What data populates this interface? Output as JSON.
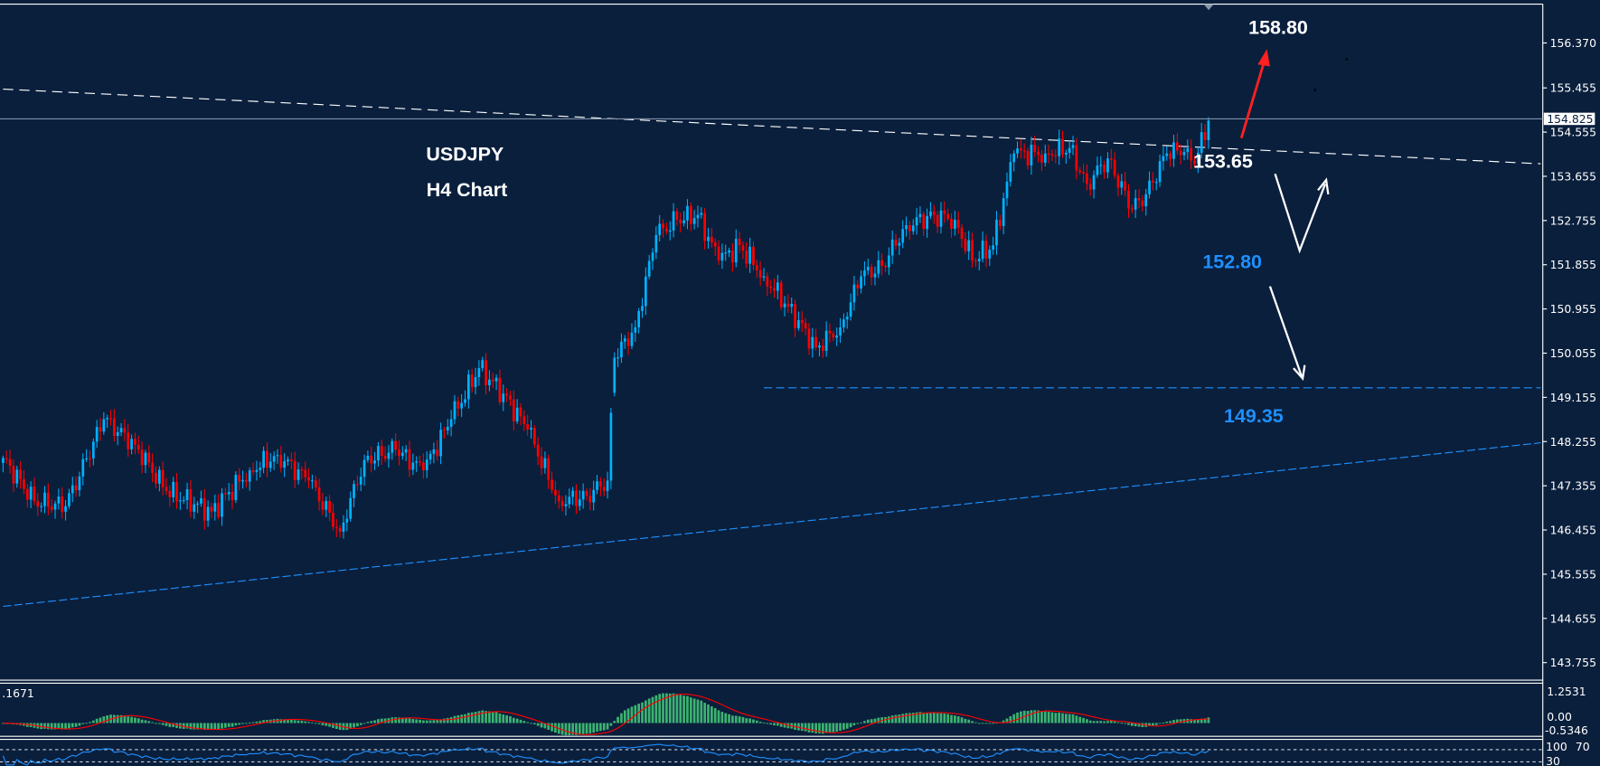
{
  "colors": {
    "background": "#0a1f3c",
    "bull": "#00b2ff",
    "bear": "#ff0000",
    "frame": "#ffffff",
    "macd_hist": "#3cb371",
    "macd_signal": "#ff0000",
    "rsi_line": "#1e90ff",
    "trend_blue": "#1e90ff",
    "resistance": "#ffffff",
    "price_line": "#8090a8"
  },
  "chart_data": {
    "type": "candlestick",
    "symbol_label": "USDJPY",
    "timeframe_label": "H4 Chart",
    "ylim": [
      143.3,
      156.9
    ],
    "y_ticks": [
      "156.370",
      "155.455",
      "154.555",
      "153.655",
      "152.755",
      "151.855",
      "150.955",
      "150.055",
      "149.155",
      "148.255",
      "147.355",
      "146.455",
      "145.555",
      "144.655",
      "143.755"
    ],
    "current_price": "154.825",
    "close_path": [
      [
        0,
        147.92
      ],
      [
        9,
        147.04
      ],
      [
        18,
        146.94
      ],
      [
        29,
        148.71
      ],
      [
        38,
        148.19
      ],
      [
        47,
        147.25
      ],
      [
        60,
        146.83
      ],
      [
        71,
        147.67
      ],
      [
        79,
        147.98
      ],
      [
        88,
        147.46
      ],
      [
        97,
        146.42
      ],
      [
        104,
        147.88
      ],
      [
        113,
        148.09
      ],
      [
        121,
        147.67
      ],
      [
        129,
        148.71
      ],
      [
        137,
        149.75
      ],
      [
        144,
        149.23
      ],
      [
        151,
        148.5
      ],
      [
        160,
        147.04
      ],
      [
        168,
        147.15
      ],
      [
        174,
        147.46
      ],
      [
        176,
        149.96
      ],
      [
        182,
        150.58
      ],
      [
        188,
        152.46
      ],
      [
        194,
        152.77
      ],
      [
        200,
        152.87
      ],
      [
        206,
        151.94
      ],
      [
        212,
        152.25
      ],
      [
        219,
        151.62
      ],
      [
        226,
        151.0
      ],
      [
        234,
        150.17
      ],
      [
        241,
        150.58
      ],
      [
        247,
        151.62
      ],
      [
        253,
        151.83
      ],
      [
        260,
        152.66
      ],
      [
        268,
        152.87
      ],
      [
        274,
        152.77
      ],
      [
        279,
        151.94
      ],
      [
        285,
        152.25
      ],
      [
        291,
        154.12
      ],
      [
        300,
        154.12
      ],
      [
        307,
        154.23
      ],
      [
        312,
        153.5
      ],
      [
        318,
        154.02
      ],
      [
        325,
        152.98
      ],
      [
        329,
        153.29
      ],
      [
        335,
        154.12
      ],
      [
        341,
        154.23
      ],
      [
        343,
        153.91
      ],
      [
        347,
        154.79
      ]
    ],
    "lines": {
      "resistance": [
        [
          0,
          155.43
        ],
        [
          444,
          153.91
        ]
      ],
      "support_trend": [
        [
          0,
          144.9
        ],
        [
          444,
          148.23
        ]
      ],
      "support_level": [
        [
          219,
          149.35
        ],
        [
          444,
          149.35
        ]
      ]
    },
    "annotations": {
      "target_up": "158.80",
      "resistance_level": "153.65",
      "mid_level": "152.80",
      "support_level": "149.35"
    },
    "macd": {
      "max_label": "1.2531",
      "zero_label": "0.00",
      "min_label": "-0.5346",
      "value_label": ".1671"
    },
    "rsi": {
      "label_100": "100",
      "label_70": "70",
      "label_30": "30"
    }
  }
}
